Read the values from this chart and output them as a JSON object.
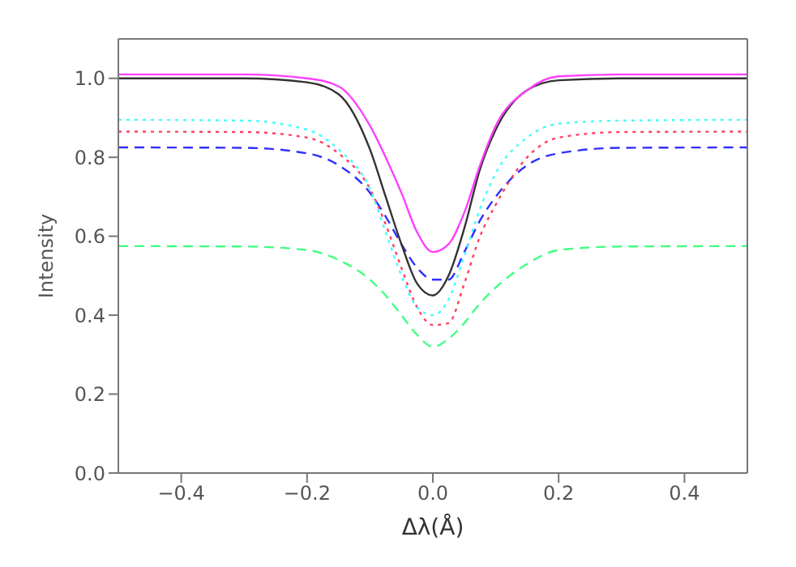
{
  "chart_data": {
    "type": "line",
    "xlabel": "Δλ(Å)",
    "ylabel": "Intensity",
    "xlim": [
      -0.5,
      0.5
    ],
    "ylim": [
      0,
      1.1
    ],
    "xticks": [
      {
        "value": -0.4,
        "label": "−0.4"
      },
      {
        "value": -0.2,
        "label": "−0.2"
      },
      {
        "value": 0,
        "label": "0.0"
      },
      {
        "value": 0.2,
        "label": "0.2"
      },
      {
        "value": 0.4,
        "label": "0.4"
      }
    ],
    "yticks": [
      {
        "value": 0,
        "label": "0.0"
      },
      {
        "value": 0.2,
        "label": "0.2"
      },
      {
        "value": 0.4,
        "label": "0.4"
      },
      {
        "value": 0.6,
        "label": "0.6"
      },
      {
        "value": 0.8,
        "label": "0.8"
      },
      {
        "value": 1,
        "label": "1.0"
      }
    ],
    "grid": false,
    "legend": false,
    "marker": "none",
    "x": [
      -0.5,
      -0.3,
      -0.2,
      -0.15,
      -0.1,
      -0.075,
      -0.05,
      -0.025,
      0,
      0.025,
      0.05,
      0.075,
      0.1,
      0.15,
      0.2,
      0.3,
      0.5
    ],
    "series": [
      {
        "color": "#40ff80",
        "line_style": "dashed",
        "values": [
          0.575,
          0.574,
          0.565,
          0.54,
          0.49,
          0.45,
          0.4,
          0.35,
          0.32,
          0.34,
          0.38,
          0.43,
          0.47,
          0.53,
          0.565,
          0.574,
          0.575
        ]
      },
      {
        "color": "#3030ff",
        "line_style": "dashed",
        "values": [
          0.825,
          0.824,
          0.81,
          0.78,
          0.71,
          0.65,
          0.58,
          0.52,
          0.49,
          0.49,
          0.56,
          0.64,
          0.7,
          0.78,
          0.81,
          0.824,
          0.825
        ]
      },
      {
        "color": "#ff4060",
        "line_style": "dotted",
        "values": [
          0.865,
          0.864,
          0.85,
          0.81,
          0.72,
          0.63,
          0.52,
          0.42,
          0.375,
          0.38,
          0.48,
          0.6,
          0.68,
          0.8,
          0.85,
          0.864,
          0.865
        ]
      },
      {
        "color": "#40ffff",
        "line_style": "dotted",
        "values": [
          0.895,
          0.893,
          0.87,
          0.82,
          0.72,
          0.61,
          0.5,
          0.42,
          0.4,
          0.44,
          0.55,
          0.67,
          0.76,
          0.85,
          0.885,
          0.893,
          0.895
        ]
      },
      {
        "color": "#333333",
        "line_style": "solid",
        "values": [
          1.0,
          1.0,
          0.99,
          0.96,
          0.82,
          0.7,
          0.58,
          0.48,
          0.45,
          0.5,
          0.62,
          0.77,
          0.87,
          0.97,
          0.995,
          1.0,
          1.0
        ]
      },
      {
        "color": "#ff40ff",
        "line_style": "solid",
        "values": [
          1.01,
          1.01,
          1.0,
          0.98,
          0.88,
          0.8,
          0.71,
          0.61,
          0.56,
          0.58,
          0.66,
          0.78,
          0.88,
          0.97,
          1.005,
          1.01,
          1.01
        ]
      }
    ]
  }
}
